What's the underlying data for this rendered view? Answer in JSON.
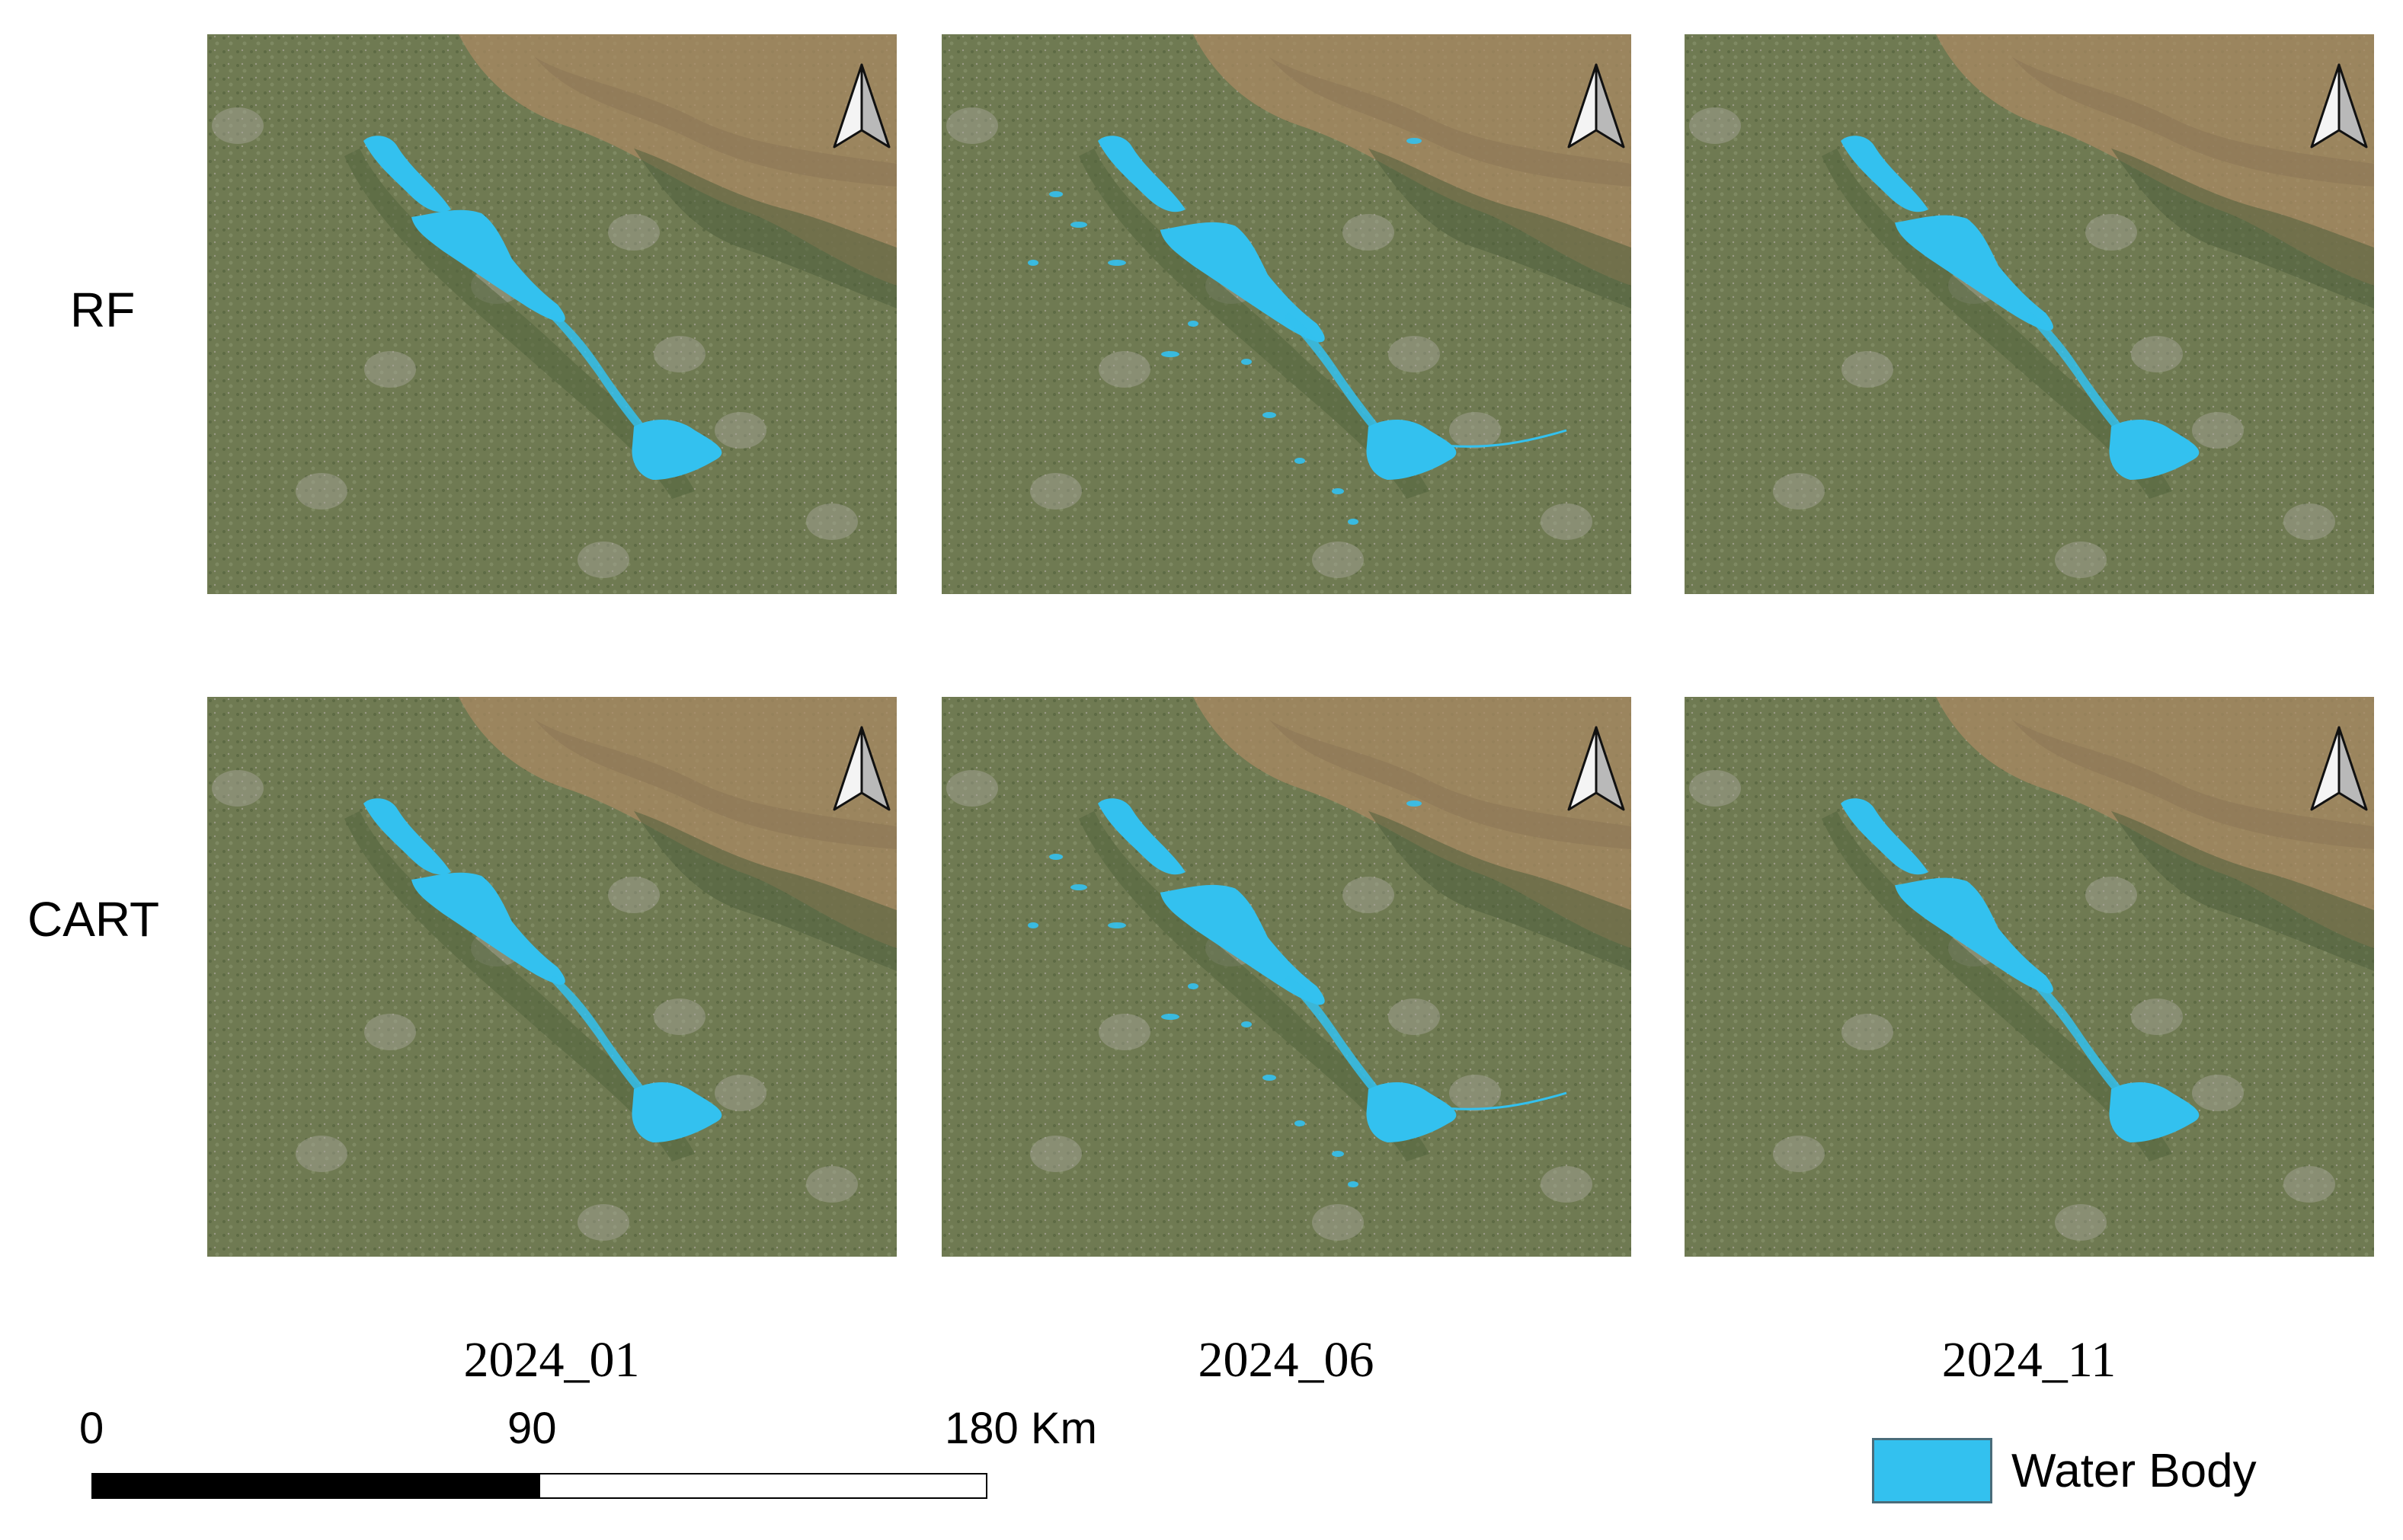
{
  "rows": [
    {
      "label": "RF"
    },
    {
      "label": "CART"
    }
  ],
  "columns": [
    {
      "label": "2024_01"
    },
    {
      "label": "2024_06"
    },
    {
      "label": "2024_11"
    }
  ],
  "scale_bar": {
    "ticks": [
      "0",
      "90",
      "180 Km"
    ]
  },
  "legend": {
    "label": "Water Body",
    "color": "#33c1ef"
  },
  "colors": {
    "water": "#33c1ef",
    "land_base": "#6f7a52",
    "highland": "#a98a63",
    "scale_dark": "#000000"
  }
}
